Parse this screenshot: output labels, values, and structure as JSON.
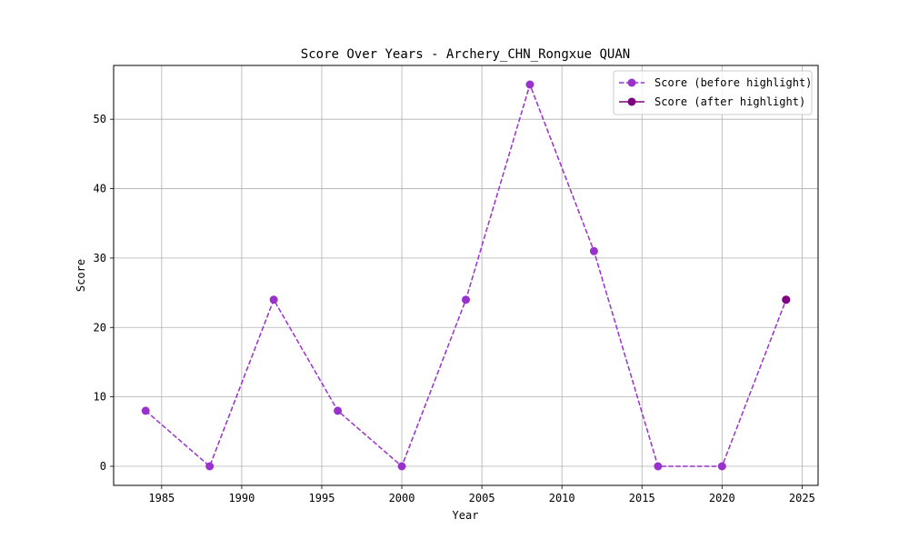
{
  "chart_data": {
    "type": "line",
    "title": "Score Over Years - Archery_CHN_Rongxue QUAN",
    "xlabel": "Year",
    "ylabel": "Score",
    "xlim": [
      1982,
      2026
    ],
    "ylim": [
      -2.75,
      57.75
    ],
    "x_ticks": [
      1985,
      1990,
      1995,
      2000,
      2005,
      2010,
      2015,
      2020,
      2025
    ],
    "y_ticks": [
      0,
      10,
      20,
      30,
      40,
      50
    ],
    "grid": true,
    "legend_position": "top-right",
    "series": [
      {
        "name": "Score (before highlight)",
        "color": "#9932cc",
        "line_style": "dashed",
        "marker": "circle",
        "x": [
          1984,
          1988,
          1992,
          1996,
          2000,
          2004,
          2008,
          2012,
          2016,
          2020,
          2024
        ],
        "y": [
          8,
          0,
          24,
          8,
          0,
          24,
          55,
          31,
          0,
          0,
          24
        ]
      },
      {
        "name": "Score (after highlight)",
        "color": "#800080",
        "line_style": "solid",
        "marker": "circle",
        "x": [
          2024
        ],
        "y": [
          24
        ]
      }
    ]
  }
}
